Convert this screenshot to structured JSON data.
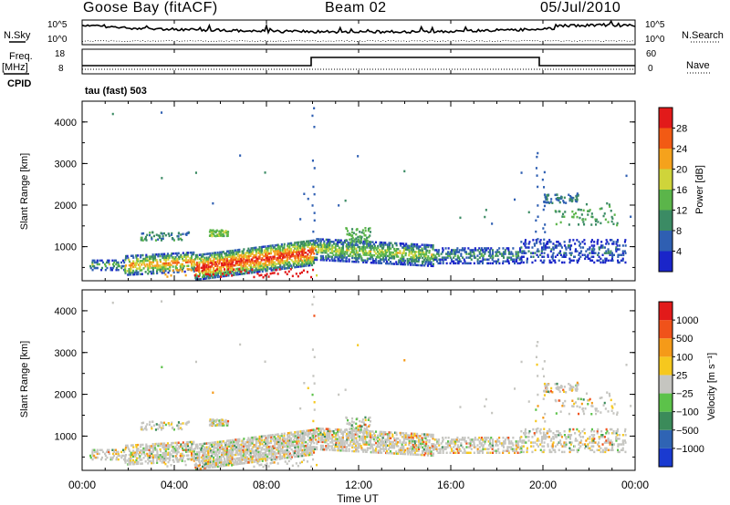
{
  "header": {
    "title": "Goose Bay (fitACF)",
    "beam": "Beam 02",
    "date": "05/Jul/2010"
  },
  "left_labels": {
    "nsky": "N.Sky",
    "freq": "Freq.",
    "freq_unit": "[MHz]",
    "cpid": "CPID"
  },
  "right_labels": {
    "nsearch": "N.Search",
    "nave": "Nave"
  },
  "cpid_label": "tau (fast) 503",
  "noise_ticks_left": [
    "10^5",
    "10^0"
  ],
  "noise_ticks_right": [
    "10^5",
    "10^0"
  ],
  "freq_ticks": [
    "18",
    "8"
  ],
  "nave_ticks": [
    "60",
    "0"
  ],
  "colors": {
    "line": "#000000",
    "power_scale": [
      "#1a25c9",
      "#2f5fb2",
      "#3b8b64",
      "#5bb54a",
      "#cfd43a",
      "#f5a21c",
      "#f25a14",
      "#e21a1a"
    ],
    "velocity_scale": [
      "#1a3ad0",
      "#2f64b4",
      "#3b8b5a",
      "#5cc24a",
      "#c5c5c0",
      "#f6c81e",
      "#f59a18",
      "#f0521a",
      "#e21a1a"
    ]
  },
  "chart_data": [
    {
      "type": "heatmap",
      "name": "power",
      "ylabel": "Slant Range [km]",
      "yticks": [
        "1000",
        "2000",
        "3000",
        "4000"
      ],
      "ylim": [
        180,
        4500
      ],
      "colorbar_label": "Power [dB]",
      "colorbar_ticks": [
        "4",
        "8",
        "12",
        "16",
        "20",
        "24",
        "28"
      ],
      "colorbar_range": [
        0,
        30
      ],
      "echo_regions": [
        {
          "t": [
            0.9,
            1.8
          ],
          "r": [
            450,
            650
          ],
          "level": "moderate"
        },
        {
          "t": [
            2.0,
            4.8
          ],
          "r": [
            350,
            1150
          ],
          "level": "strong"
        },
        {
          "t": [
            4.8,
            10.0
          ],
          "r": [
            200,
            1000
          ],
          "level": "very strong"
        },
        {
          "t": [
            10.0,
            15.2
          ],
          "r": [
            500,
            1400
          ],
          "level": "moderate"
        },
        {
          "t": [
            15.3,
            19.0
          ],
          "r": [
            500,
            1100
          ],
          "level": "weak"
        },
        {
          "t": [
            19.5,
            23.0
          ],
          "r": [
            500,
            2200
          ],
          "level": "weak"
        }
      ]
    },
    {
      "type": "heatmap",
      "name": "velocity",
      "ylabel": "Slant Range [km]",
      "yticks": [
        "1000",
        "2000",
        "3000",
        "4000"
      ],
      "ylim": [
        180,
        4500
      ],
      "colorbar_label": "Velocity [m s⁻¹]",
      "colorbar_ticks": [
        "1000",
        "500",
        "100",
        "25",
        "−25",
        "−100",
        "−500",
        "−1000"
      ],
      "dominant_value_range": [
        -25,
        25
      ]
    }
  ],
  "x_axis": {
    "label": "Time UT",
    "ticks": [
      "00:00",
      "04:00",
      "08:00",
      "12:00",
      "16:00",
      "20:00",
      "00:00"
    ]
  }
}
